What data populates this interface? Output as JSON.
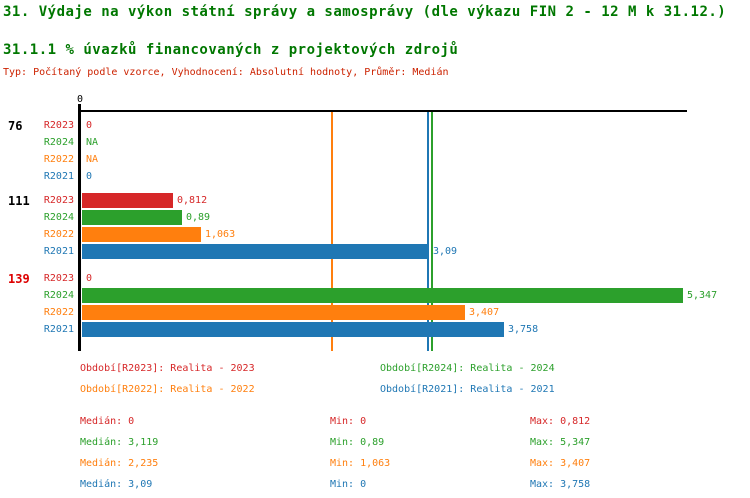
{
  "header": {
    "title": "31. Výdaje na výkon státní správy a samosprávy (dle výkazu FIN 2 - 12 M k 31.12.)",
    "subtitle": "31.1.1 % úvazků financovaných z projektových zdrojů",
    "meta_line": "Typ: Počítaný podle vzorce, Vyhodnocení: Absolutní hodnoty, Průměr: Medián",
    "title_color": "#007700",
    "meta_color": "#cc2200"
  },
  "chart_data": {
    "type": "bar",
    "orientation": "horizontal",
    "xlim": [
      0,
      5.4
    ],
    "x_axis": {
      "tick_labels": [
        "0"
      ],
      "tick_values": [
        0
      ]
    },
    "grid": false,
    "series_colors": {
      "R2023": "#d62728",
      "R2024": "#2ca02c",
      "R2022": "#ff7f0e",
      "R2021": "#1f77b4"
    },
    "groups": [
      {
        "label": "76",
        "label_color": "#000000",
        "rows": [
          {
            "series": "R2023",
            "value": 0,
            "display": "0"
          },
          {
            "series": "R2024",
            "value": null,
            "display": "NA"
          },
          {
            "series": "R2022",
            "value": null,
            "display": "NA"
          },
          {
            "series": "R2021",
            "value": 0,
            "display": "0"
          }
        ]
      },
      {
        "label": "111",
        "label_color": "#000000",
        "rows": [
          {
            "series": "R2023",
            "value": 0.812,
            "display": "0,812"
          },
          {
            "series": "R2024",
            "value": 0.89,
            "display": "0,89"
          },
          {
            "series": "R2022",
            "value": 1.063,
            "display": "1,063"
          },
          {
            "series": "R2021",
            "value": 3.09,
            "display": "3,09"
          }
        ]
      },
      {
        "label": "139",
        "label_color": "#dd0000",
        "rows": [
          {
            "series": "R2023",
            "value": 0,
            "display": "0"
          },
          {
            "series": "R2024",
            "value": 5.347,
            "display": "5,347"
          },
          {
            "series": "R2022",
            "value": 3.407,
            "display": "3,407"
          },
          {
            "series": "R2021",
            "value": 3.758,
            "display": "3,758"
          }
        ]
      }
    ],
    "reference_lines": [
      {
        "name": "zero-axis",
        "value": 0,
        "color": "#000000"
      },
      {
        "name": "median-R2022",
        "value": 2.235,
        "color": "#ff7f0e"
      },
      {
        "name": "median-R2021",
        "value": 3.09,
        "color": "#1f77b4"
      },
      {
        "name": "median-R2024",
        "value": 3.119,
        "color": "#2ca02c"
      }
    ]
  },
  "legend": {
    "items": [
      {
        "label": "Období[R2023]: Realita - 2023",
        "color": "#d62728",
        "col": 0,
        "row": 0
      },
      {
        "label": "Období[R2024]: Realita - 2024",
        "color": "#2ca02c",
        "col": 1,
        "row": 0
      },
      {
        "label": "Období[R2022]: Realita - 2022",
        "color": "#ff7f0e",
        "col": 0,
        "row": 1
      },
      {
        "label": "Období[R2021]: Realita - 2021",
        "color": "#1f77b4",
        "col": 1,
        "row": 1
      }
    ]
  },
  "stats": {
    "rows": [
      {
        "color": "#d62728",
        "cells": [
          "Medián: 0",
          "Min: 0",
          "Max: 0,812"
        ]
      },
      {
        "color": "#2ca02c",
        "cells": [
          "Medián: 3,119",
          "Min: 0,89",
          "Max: 5,347"
        ]
      },
      {
        "color": "#ff7f0e",
        "cells": [
          "Medián: 2,235",
          "Min: 1,063",
          "Max: 3,407"
        ]
      },
      {
        "color": "#1f77b4",
        "cells": [
          "Medián: 3,09",
          "Min: 0",
          "Max: 3,758"
        ]
      }
    ]
  }
}
